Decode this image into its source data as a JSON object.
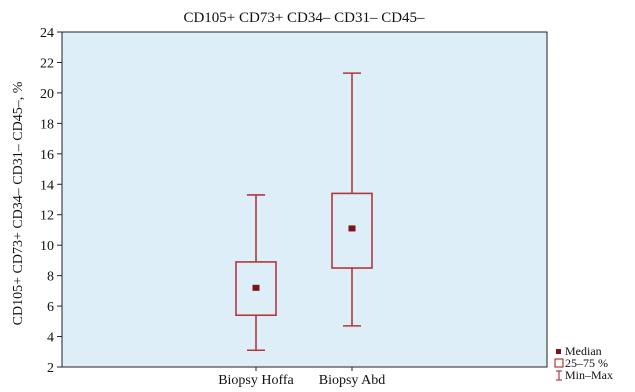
{
  "chart_data": {
    "type": "boxplot",
    "title": "CD105+ CD73+ CD34– CD31– CD45–",
    "xlabel": "",
    "ylabel": "CD105+ CD73+ CD34– CD31– CD45–, %",
    "ylim": [
      2,
      24
    ],
    "yticks": [
      2,
      4,
      6,
      8,
      10,
      12,
      14,
      16,
      18,
      20,
      22,
      24
    ],
    "grid": false,
    "legend_position": "bottom-right",
    "categories": [
      "Biopsy Hoffa",
      "Biopsy Abd"
    ],
    "boxes": [
      {
        "category": "Biopsy Hoffa",
        "min": 3.1,
        "q1": 5.4,
        "median": 7.2,
        "q3": 8.9,
        "max": 13.3
      },
      {
        "category": "Biopsy Abd",
        "min": 4.7,
        "q1": 8.5,
        "median": 11.1,
        "q3": 13.4,
        "max": 21.3
      }
    ],
    "legend": [
      {
        "key": "median",
        "label": "Median"
      },
      {
        "key": "box",
        "label": "25–75 %"
      },
      {
        "key": "whisker",
        "label": "Min–Max"
      }
    ],
    "colors": {
      "plot_background": "#ddeef8",
      "box": "#b03a3a",
      "median_marker": "#7a1515",
      "frame": "#222222"
    }
  }
}
